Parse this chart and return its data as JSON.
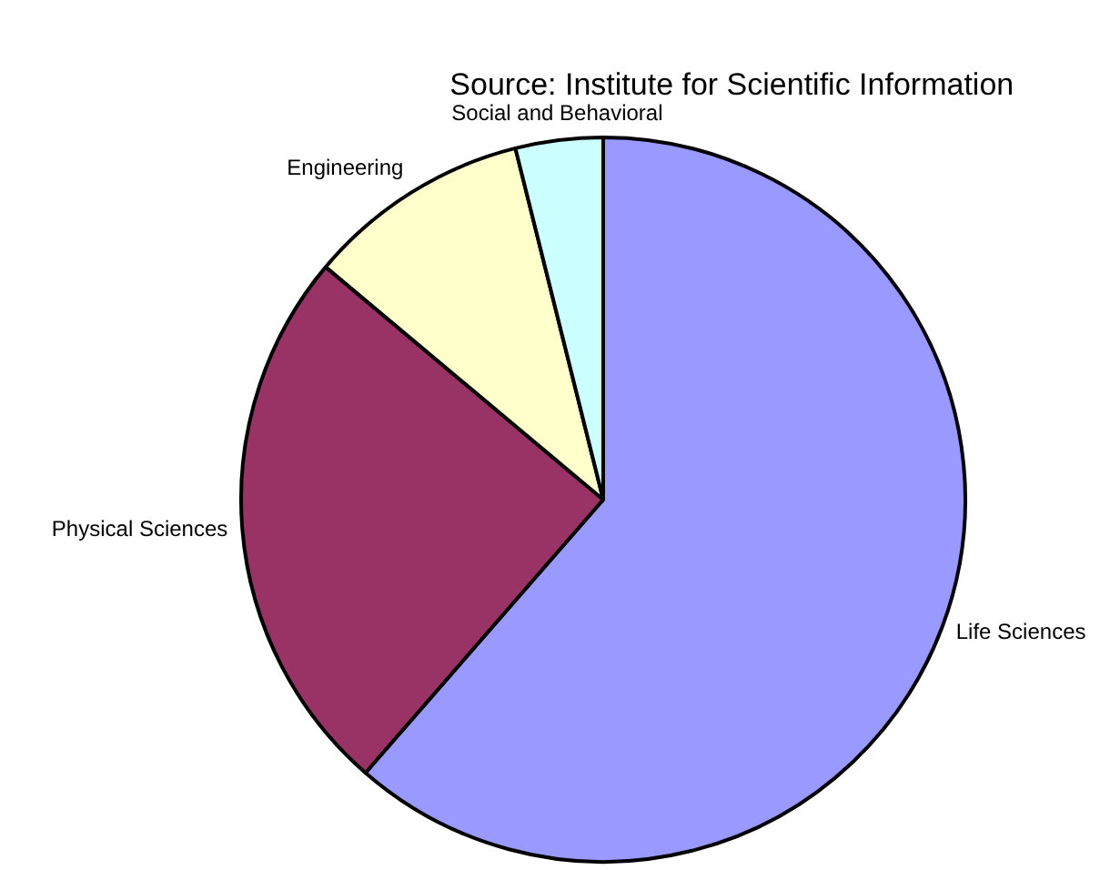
{
  "chart_data": {
    "type": "pie",
    "title": "Source:  Institute for Scientific Information",
    "categories": [
      "Life Sciences",
      "Physical Sciences",
      "Engineering",
      "Social and Behavioral"
    ],
    "values": [
      61.4,
      24.7,
      10.0,
      3.9
    ],
    "colors": [
      "#9999ff",
      "#993366",
      "#ffffcc",
      "#ccffff"
    ],
    "legend": false
  }
}
